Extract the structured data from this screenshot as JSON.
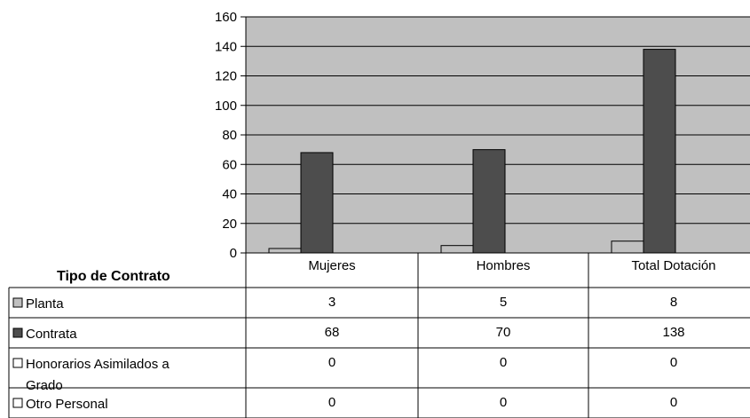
{
  "chart_data": {
    "type": "bar",
    "table_title": "Tipo de Contrato",
    "categories": [
      "Mujeres",
      "Hombres",
      "Total Dotación"
    ],
    "ylim": [
      0,
      160
    ],
    "y_ticks": [
      0,
      20,
      40,
      60,
      80,
      100,
      120,
      140,
      160
    ],
    "grid": true,
    "series": [
      {
        "name": "Planta",
        "values": [
          3,
          5,
          8
        ],
        "color": "#c0c0c0",
        "label_lines": [
          "Planta"
        ]
      },
      {
        "name": "Contrata",
        "values": [
          68,
          70,
          138
        ],
        "color": "#4d4d4d",
        "label_lines": [
          "Contrata"
        ]
      },
      {
        "name": "Honorarios Asimilados a Grado",
        "values": [
          0,
          0,
          0
        ],
        "color": "#ffffff",
        "label_lines": [
          "Honorarios Asimilados a",
          "Grado"
        ]
      },
      {
        "name": "Otro Personal",
        "values": [
          0,
          0,
          0
        ],
        "color": "#ffffff",
        "label_lines": [
          "Otro Personal"
        ]
      }
    ],
    "plot_background": "#c0c0c0"
  }
}
